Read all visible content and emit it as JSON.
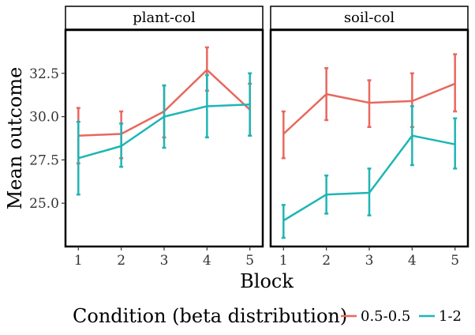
{
  "chart_data": {
    "type": "line",
    "xlabel": "Block",
    "ylabel": "Mean outcome",
    "x": [
      1,
      2,
      3,
      4,
      5
    ],
    "xlim": [
      0.7,
      5.3
    ],
    "ylim": [
      22.5,
      35
    ],
    "yticks": [
      25.0,
      27.5,
      30.0,
      32.5
    ],
    "ytick_labels": [
      "25.0",
      "27.5",
      "30.0",
      "32.5"
    ],
    "xtick_labels": [
      "1",
      "2",
      "3",
      "4",
      "5"
    ],
    "grid": false,
    "legend": {
      "title": "Condition (beta distribution)",
      "position": "bottom",
      "entries": [
        "0.5-0.5",
        "1-2"
      ]
    },
    "colors": {
      "0.5-0.5": "#E8685E",
      "1-2": "#1FB5B5"
    },
    "panels": [
      {
        "title": "plant-col",
        "series": [
          {
            "name": "0.5-0.5",
            "mean": [
              28.9,
              29.0,
              30.3,
              32.7,
              30.4
            ],
            "lower": [
              27.3,
              27.6,
              28.8,
              31.5,
              28.9
            ],
            "upper": [
              30.5,
              30.3,
              31.8,
              34.0,
              31.9
            ]
          },
          {
            "name": "1-2",
            "mean": [
              27.6,
              28.3,
              30.0,
              30.6,
              30.7
            ],
            "lower": [
              25.5,
              27.1,
              28.2,
              28.8,
              28.9
            ],
            "upper": [
              29.7,
              29.6,
              31.8,
              32.4,
              32.5
            ]
          }
        ]
      },
      {
        "title": "soil-col",
        "series": [
          {
            "name": "0.5-0.5",
            "mean": [
              29.0,
              31.3,
              30.8,
              30.9,
              31.9
            ],
            "lower": [
              27.6,
              29.8,
              29.4,
              29.4,
              30.3
            ],
            "upper": [
              30.3,
              32.8,
              32.1,
              32.5,
              33.6
            ]
          },
          {
            "name": "1-2",
            "mean": [
              24.0,
              25.5,
              25.6,
              28.9,
              28.4
            ],
            "lower": [
              23.0,
              24.4,
              24.3,
              27.2,
              27.0
            ],
            "upper": [
              24.9,
              26.6,
              27.0,
              30.6,
              29.9
            ]
          }
        ]
      }
    ]
  }
}
